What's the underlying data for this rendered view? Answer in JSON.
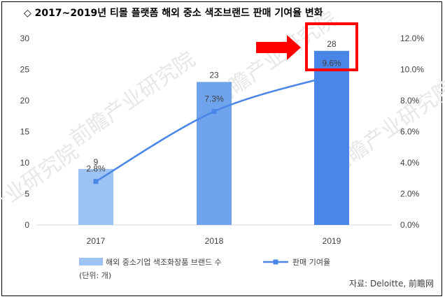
{
  "title": "◇ 2017~2019년 티몰 플랫폼 해외 중소 색조브랜드 판매 기여율 변화",
  "chart_data": {
    "type": "bar",
    "categories": [
      "2017",
      "2018",
      "2019"
    ],
    "series": [
      {
        "name": "해외 중소기업 색조화장품 브랜드 수",
        "axis": "left",
        "type": "bar",
        "values": [
          9,
          23,
          28
        ],
        "labels": [
          "9",
          "23",
          "28"
        ],
        "colors": [
          "#9dc3f5",
          "#6fa3ec",
          "#4a86e8"
        ]
      },
      {
        "name": "판매 기여율",
        "axis": "right",
        "type": "line",
        "values": [
          2.8,
          7.3,
          9.6
        ],
        "labels": [
          "2.8%",
          "7.3%",
          "9.6%"
        ],
        "color": "#4a86e8"
      }
    ],
    "y_left": {
      "min": 0,
      "max": 30,
      "ticks": [
        "0",
        "5",
        "10",
        "15",
        "20",
        "25",
        "30"
      ]
    },
    "y_right": {
      "min": 0,
      "max": 12,
      "ticks": [
        "0.0%",
        "2.0%",
        "4.0%",
        "6.0%",
        "8.0%",
        "10.0%",
        "12.0%"
      ]
    },
    "grid": false,
    "legend_position": "bottom",
    "unit_note": "(단위: 개)"
  },
  "annotation": {
    "highlight": "2019",
    "arrow_color": "#ff0000"
  },
  "source": "자료: Deloitte, 前瞻网",
  "watermark": "前瞻产业研究院"
}
